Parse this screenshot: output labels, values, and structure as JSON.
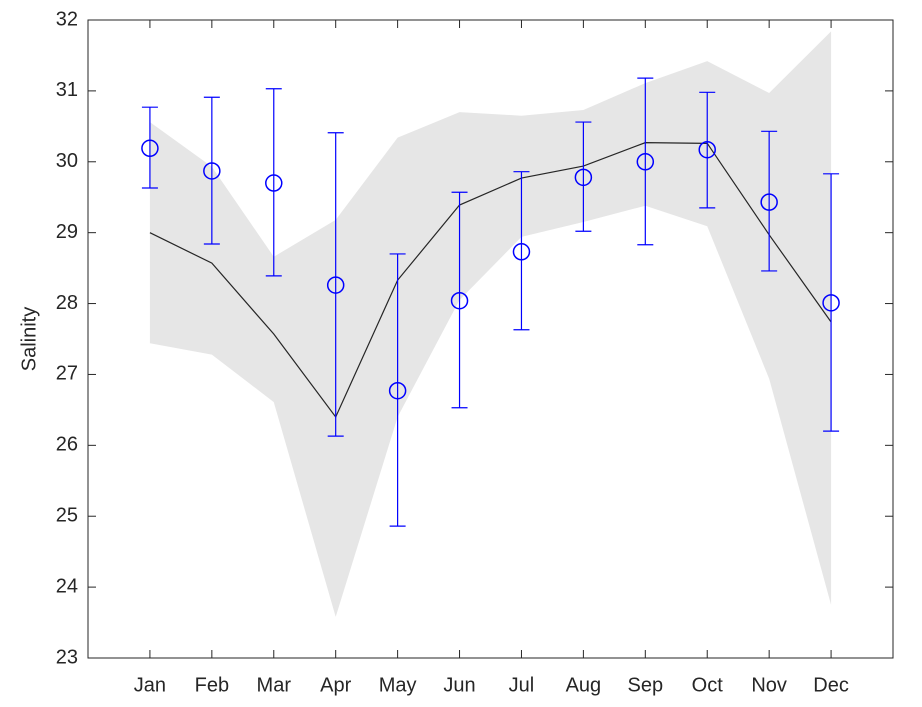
{
  "chart_data": {
    "type": "line",
    "y_label": "Salinity",
    "categories": [
      "Jan",
      "Feb",
      "Mar",
      "Apr",
      "May",
      "Jun",
      "Jul",
      "Aug",
      "Sep",
      "Oct",
      "Nov",
      "Dec"
    ],
    "ylim": [
      23,
      32
    ],
    "yticks": [
      23,
      24,
      25,
      26,
      27,
      28,
      29,
      30,
      31,
      32
    ],
    "band": {
      "color": "#e6e6e6",
      "upper": [
        30.56,
        29.93,
        28.66,
        29.18,
        30.34,
        30.7,
        30.65,
        30.73,
        31.11,
        31.42,
        30.97,
        31.84
      ],
      "lower": [
        27.44,
        27.28,
        26.61,
        23.58,
        26.4,
        28.05,
        28.94,
        29.15,
        29.38,
        29.09,
        26.94,
        23.75
      ]
    },
    "line": {
      "color": "#262626",
      "values": [
        29.0,
        28.57,
        27.57,
        26.4,
        28.33,
        29.39,
        29.77,
        29.94,
        30.27,
        30.26,
        28.97,
        27.74
      ]
    },
    "points": {
      "color": "#0000ff",
      "values": [
        30.19,
        29.87,
        29.7,
        28.26,
        26.77,
        28.04,
        28.73,
        29.78,
        30.0,
        30.17,
        29.43,
        28.01
      ],
      "upper": [
        30.77,
        30.91,
        31.03,
        30.41,
        28.7,
        29.57,
        29.86,
        30.56,
        31.18,
        30.98,
        30.43,
        29.83
      ],
      "lower": [
        29.63,
        28.84,
        28.39,
        26.13,
        24.86,
        26.53,
        27.63,
        29.02,
        28.83,
        29.35,
        28.46,
        26.2
      ]
    }
  }
}
